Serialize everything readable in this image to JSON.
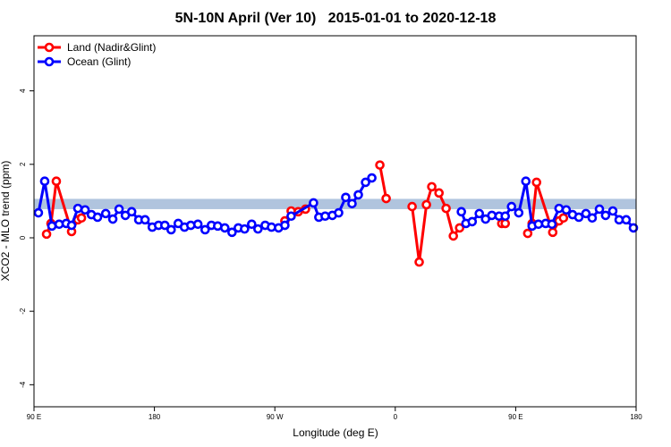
{
  "chart_data": {
    "type": "line",
    "title": "5N-10N April (Ver 10)   2015-01-01 to 2020-12-18",
    "xlabel": "Longitude (deg E)",
    "ylabel": "XCO2 - MLO trend (ppm)",
    "xlim": [
      90,
      540
    ],
    "xticks": [
      {
        "value": 90,
        "label": "90 E"
      },
      180,
      {
        "value": 270,
        "label": "90 W"
      },
      {
        "value": 360,
        "label": "0"
      },
      {
        "value": 450,
        "label": "90 E"
      },
      {
        "value": 540,
        "label": "180"
      }
    ],
    "ylim": [
      -4.6,
      5.5
    ],
    "yticks": [
      -4,
      -2,
      0,
      2,
      4
    ],
    "legend": "top-left",
    "reference_band": {
      "range": [
        0.78,
        1.06
      ],
      "color": "#b0c4de"
    },
    "series": [
      {
        "name": "Land (Nadir&Glint)",
        "color": "#ff0000",
        "x": [
          99.4,
          102.7,
          106.7,
          118.1,
          122.8,
          125.5,
          null,
          277.5,
          282.2,
          287.5,
          292.9,
          null,
          348.5,
          353.2,
          null,
          372.6,
          377.9,
          383.3,
          387.3,
          392.7,
          398,
          403.4,
          408.1,
          null,
          439.6,
          442.2,
          null,
          459,
          462.3,
          465.6,
          477.7,
          482.4,
          485.7
        ],
        "values": [
          0.1,
          0.39,
          1.54,
          0.17,
          0.49,
          0.54,
          null,
          0.46,
          0.73,
          0.71,
          0.78,
          null,
          1.98,
          1.07,
          null,
          0.85,
          -0.66,
          0.9,
          1.39,
          1.22,
          0.8,
          0.05,
          0.27,
          null,
          0.39,
          0.39,
          null,
          0.12,
          0.39,
          1.51,
          0.15,
          0.46,
          0.54
        ]
      },
      {
        "name": "Ocean (Glint)",
        "color": "#0000ff",
        "x": [
          93.3,
          98,
          103.4,
          108.8,
          114.1,
          118.1,
          122.8,
          128.2,
          132.9,
          137.5,
          143.6,
          148.9,
          153.6,
          158.3,
          163,
          168.3,
          173,
          178.4,
          183.1,
          187.8,
          192.5,
          197.8,
          202.5,
          207.2,
          212.5,
          217.9,
          222.6,
          227.3,
          232.6,
          238,
          242.7,
          247.4,
          252.7,
          257.4,
          262.8,
          267.5,
          272.8,
          277.5,
          282.2,
          298.9,
          302.9,
          307.6,
          313,
          317.7,
          323,
          327.7,
          332.4,
          337.8,
          342.5,
          null,
          409.4,
          412.8,
          417.5,
          422.8,
          427.5,
          432.2,
          437.6,
          442.2,
          446.9,
          452.3,
          457.6,
          462.3,
          467,
          472.4,
          477.1,
          482.4,
          487.8,
          492.5,
          497.2,
          502.5,
          507.2,
          512.6,
          517.2,
          522.6,
          527.3,
          532.6,
          538
        ],
        "values": [
          0.68,
          1.54,
          0.32,
          0.37,
          0.39,
          0.34,
          0.8,
          0.76,
          0.63,
          0.56,
          0.66,
          0.51,
          0.78,
          0.61,
          0.71,
          0.49,
          0.49,
          0.29,
          0.34,
          0.34,
          0.22,
          0.39,
          0.29,
          0.34,
          0.37,
          0.22,
          0.34,
          0.32,
          0.27,
          0.15,
          0.27,
          0.24,
          0.37,
          0.24,
          0.34,
          0.29,
          0.27,
          0.34,
          0.59,
          0.95,
          0.56,
          0.59,
          0.61,
          0.68,
          1.1,
          0.93,
          1.17,
          1.51,
          1.63,
          null,
          0.71,
          0.39,
          0.44,
          0.66,
          0.51,
          0.61,
          0.59,
          0.59,
          0.85,
          0.68,
          1.54,
          0.32,
          0.37,
          0.39,
          0.37,
          0.8,
          0.76,
          0.63,
          0.56,
          0.66,
          0.54,
          0.78,
          0.61,
          0.73,
          0.49,
          0.49,
          0.27
        ]
      }
    ]
  }
}
